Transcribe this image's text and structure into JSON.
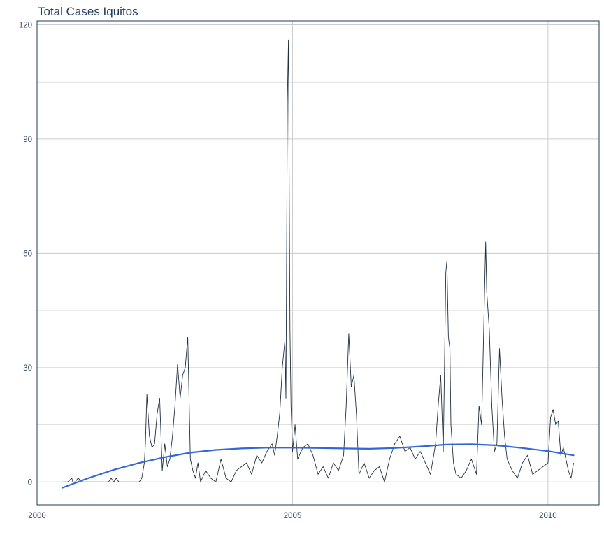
{
  "chart_data": {
    "type": "line",
    "title": "Total Cases Iquitos",
    "xlabel": "",
    "ylabel": "",
    "x_ticks": [
      "2000",
      "2005",
      "2010"
    ],
    "y_ticks": [
      "0",
      "30",
      "60",
      "90",
      "120"
    ],
    "xlim": [
      2000.0,
      2011.0
    ],
    "ylim": [
      -6,
      121
    ],
    "grid": true,
    "legend": "none",
    "colors": {
      "series": "#1f3040",
      "trend": "#3366dd",
      "grid": "#cccccc",
      "axis": "#1f3a5a"
    },
    "series": [
      {
        "x": [
          2000.5,
          2000.55,
          2000.6,
          2000.68,
          2000.7,
          2000.75,
          2000.8,
          2000.9,
          2001.0,
          2001.1,
          2001.2,
          2001.25,
          2001.3,
          2001.4,
          2001.45,
          2001.5,
          2001.55,
          2001.6,
          2001.7,
          2001.8,
          2001.9,
          2001.95,
          2002.0,
          2002.05,
          2002.1,
          2002.12,
          2002.15,
          2002.2,
          2002.25,
          2002.3,
          2002.35,
          2002.4,
          2002.45,
          2002.5,
          2002.55,
          2002.6,
          2002.65,
          2002.7,
          2002.75,
          2002.8,
          2002.85,
          2002.9,
          2002.95,
          2003.0,
          2003.05,
          2003.1,
          2003.15,
          2003.2,
          2003.3,
          2003.4,
          2003.5,
          2003.6,
          2003.7,
          2003.8,
          2003.9,
          2004.0,
          2004.1,
          2004.2,
          2004.3,
          2004.4,
          2004.5,
          2004.6,
          2004.65,
          2004.7,
          2004.75,
          2004.8,
          2004.85,
          2004.87,
          2004.9,
          2004.92,
          2004.95,
          2004.97,
          2005.0,
          2005.05,
          2005.1,
          2005.2,
          2005.3,
          2005.4,
          2005.5,
          2005.6,
          2005.7,
          2005.8,
          2005.9,
          2006.0,
          2006.05,
          2006.1,
          2006.15,
          2006.2,
          2006.25,
          2006.3,
          2006.4,
          2006.5,
          2006.6,
          2006.7,
          2006.8,
          2006.9,
          2007.0,
          2007.1,
          2007.2,
          2007.3,
          2007.4,
          2007.5,
          2007.6,
          2007.7,
          2007.8,
          2007.85,
          2007.9,
          2007.95,
          2008.0,
          2008.02,
          2008.05,
          2008.08,
          2008.1,
          2008.15,
          2008.2,
          2008.3,
          2008.4,
          2008.5,
          2008.6,
          2008.65,
          2008.7,
          2008.75,
          2008.78,
          2008.8,
          2008.85,
          2008.9,
          2008.95,
          2009.0,
          2009.05,
          2009.1,
          2009.15,
          2009.2,
          2009.3,
          2009.4,
          2009.5,
          2009.6,
          2009.7,
          2009.8,
          2009.9,
          2010.0,
          2010.05,
          2010.1,
          2010.15,
          2010.2,
          2010.25,
          2010.3,
          2010.35,
          2010.4,
          2010.45,
          2010.5
        ],
        "y": [
          0,
          0,
          0,
          1,
          0,
          0,
          1,
          0,
          0,
          0,
          0,
          0,
          0,
          0,
          1,
          0,
          1,
          0,
          0,
          0,
          0,
          0,
          0,
          1,
          5,
          10,
          23,
          12,
          9,
          10,
          18,
          22,
          3,
          10,
          4,
          6,
          12,
          20,
          31,
          22,
          28,
          30,
          38,
          6,
          3,
          1,
          5,
          0,
          3,
          1,
          0,
          6,
          1,
          0,
          3,
          4,
          5,
          2,
          7,
          5,
          8,
          10,
          7,
          12,
          18,
          30,
          37,
          22,
          100,
          116,
          40,
          20,
          8,
          15,
          6,
          9,
          10,
          7,
          2,
          4,
          1,
          5,
          3,
          7,
          20,
          39,
          25,
          28,
          18,
          2,
          5,
          1,
          3,
          4,
          0,
          6,
          10,
          12,
          8,
          9,
          6,
          8,
          5,
          2,
          10,
          20,
          28,
          8,
          55,
          58,
          38,
          35,
          15,
          5,
          2,
          1,
          3,
          6,
          2,
          20,
          15,
          45,
          63,
          50,
          40,
          20,
          8,
          10,
          35,
          22,
          12,
          6,
          3,
          1,
          5,
          7,
          2,
          3,
          4,
          5,
          17,
          19,
          15,
          16,
          7,
          9,
          6,
          3,
          1,
          5
        ]
      },
      {
        "name": "",
        "x": [
          2000.5,
          2001.0,
          2001.5,
          2002.0,
          2002.5,
          2003.0,
          2003.5,
          2004.0,
          2004.5,
          2005.0,
          2005.5,
          2006.0,
          2006.5,
          2007.0,
          2007.5,
          2008.0,
          2008.5,
          2009.0,
          2009.5,
          2010.0,
          2010.5
        ],
        "y": [
          -1.5,
          1.0,
          3.2,
          5.0,
          6.5,
          7.7,
          8.4,
          8.8,
          9.0,
          9.0,
          8.9,
          8.8,
          8.7,
          8.9,
          9.3,
          9.8,
          9.9,
          9.6,
          8.9,
          8.1,
          7.0
        ]
      }
    ]
  }
}
